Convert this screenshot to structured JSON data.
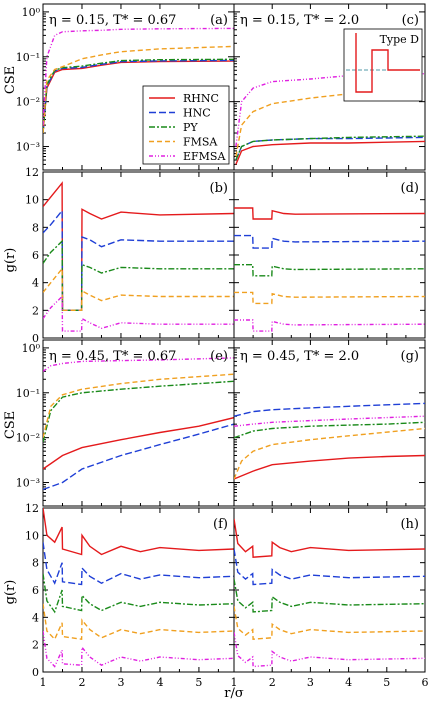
{
  "figure": {
    "xlabel": "r/σ",
    "ylabel_cse": "CSE",
    "ylabel_gr": "g(r)",
    "inset_label": "Type D",
    "legend": [
      "RHNC",
      "HNC",
      "PY",
      "FMSA",
      "EFMSA"
    ],
    "colors": {
      "RHNC": "#e41a1c",
      "HNC": "#1f3fd6",
      "PY": "#1a8a1a",
      "FMSA": "#f0a020",
      "EFMSA": "#e020e0"
    },
    "x_ticks_left": [
      "1",
      "2",
      "3",
      "4",
      "5"
    ],
    "x_ticks_right": [
      "1",
      "2",
      "3",
      "4",
      "5",
      "6"
    ],
    "cse_ticks": [
      "10⁰",
      "10⁻¹",
      "10⁻²",
      "10⁻³"
    ],
    "gr_ticks": [
      "0",
      "2",
      "4",
      "6",
      "8",
      "10",
      "12"
    ]
  },
  "chart_data": [
    {
      "panel": "(a)",
      "type": "line",
      "title": "η = 0.15, T* = 0.67",
      "ylabel": "CSE",
      "xlim": [
        1,
        5.9
      ],
      "ylim": [
        0.0003,
        1.5
      ],
      "yscale": "log",
      "series": [
        {
          "name": "RHNC",
          "x": [
            1,
            1.1,
            1.3,
            1.5,
            2.0,
            2.5,
            3.0,
            4.0,
            5.9
          ],
          "y": [
            0.002,
            0.02,
            0.045,
            0.052,
            0.055,
            0.065,
            0.075,
            0.078,
            0.08
          ]
        },
        {
          "name": "HNC",
          "x": [
            1,
            1.1,
            1.3,
            1.5,
            2.0,
            2.5,
            3.0,
            4.0,
            5.9
          ],
          "y": [
            0.002,
            0.022,
            0.048,
            0.055,
            0.058,
            0.068,
            0.078,
            0.081,
            0.083
          ]
        },
        {
          "name": "PY",
          "x": [
            1,
            1.1,
            1.3,
            1.5,
            2.0,
            2.5,
            3.0,
            4.0,
            5.9
          ],
          "y": [
            0.002,
            0.024,
            0.05,
            0.057,
            0.062,
            0.072,
            0.082,
            0.086,
            0.088
          ]
        },
        {
          "name": "FMSA",
          "x": [
            1,
            1.1,
            1.3,
            1.5,
            2.0,
            2.5,
            3.0,
            4.0,
            5.9
          ],
          "y": [
            0.002,
            0.03,
            0.052,
            0.06,
            0.09,
            0.11,
            0.13,
            0.15,
            0.17
          ]
        },
        {
          "name": "EFMSA",
          "x": [
            1,
            1.1,
            1.3,
            1.5,
            2.0,
            2.5,
            3.0,
            4.0,
            5.9
          ],
          "y": [
            0.003,
            0.1,
            0.3,
            0.36,
            0.38,
            0.39,
            0.41,
            0.42,
            0.43
          ]
        }
      ]
    },
    {
      "panel": "(c)",
      "type": "line",
      "title": "η = 0.15, T* = 2.0",
      "ylabel": "CSE",
      "xlim": [
        1,
        6
      ],
      "ylim": [
        0.0003,
        1.5
      ],
      "yscale": "log",
      "series": [
        {
          "name": "RHNC",
          "x": [
            1.05,
            1.2,
            1.5,
            2.0,
            3.0,
            4.0,
            6.0
          ],
          "y": [
            0.0004,
            0.0008,
            0.001,
            0.0011,
            0.0012,
            0.0012,
            0.0013
          ]
        },
        {
          "name": "HNC",
          "x": [
            1.05,
            1.2,
            1.5,
            2.0,
            3.0,
            4.0,
            6.0
          ],
          "y": [
            0.0005,
            0.001,
            0.0013,
            0.0014,
            0.0015,
            0.0015,
            0.0016
          ]
        },
        {
          "name": "PY",
          "x": [
            1.05,
            1.2,
            1.5,
            2.0,
            3.0,
            4.0,
            6.0
          ],
          "y": [
            0.0005,
            0.001,
            0.0013,
            0.0014,
            0.0015,
            0.0016,
            0.0017
          ]
        },
        {
          "name": "FMSA",
          "x": [
            1.05,
            1.2,
            1.5,
            2.0,
            3.0,
            4.0,
            6.0
          ],
          "y": [
            0.0006,
            0.003,
            0.006,
            0.009,
            0.012,
            0.015,
            0.017
          ]
        },
        {
          "name": "EFMSA",
          "x": [
            1.05,
            1.2,
            1.5,
            2.0,
            3.0,
            4.0,
            6.0
          ],
          "y": [
            0.001,
            0.01,
            0.02,
            0.028,
            0.032,
            0.038,
            0.042
          ]
        }
      ]
    },
    {
      "panel": "(b)",
      "type": "line",
      "ylabel": "g(r)",
      "xlim": [
        1,
        5.9
      ],
      "ylim": [
        0,
        12
      ],
      "series": [
        {
          "name": "RHNC",
          "x": [
            1,
            1.2,
            1.49,
            1.5,
            1.99,
            2.0,
            2.2,
            2.5,
            3.0,
            4.0,
            5.9
          ],
          "y": [
            9.5,
            10.2,
            11.2,
            2.0,
            2.0,
            9.3,
            9.0,
            8.6,
            9.1,
            8.9,
            9.0
          ]
        },
        {
          "name": "HNC",
          "x": [
            1,
            1.2,
            1.49,
            1.5,
            1.99,
            2.0,
            2.2,
            2.5,
            3.0,
            4.0,
            5.9
          ],
          "y": [
            7.6,
            8.2,
            9.2,
            2.0,
            2.0,
            7.3,
            7.1,
            6.6,
            7.1,
            7.0,
            7.0
          ]
        },
        {
          "name": "PY",
          "x": [
            1,
            1.2,
            1.49,
            1.5,
            1.99,
            2.0,
            2.2,
            2.5,
            3.0,
            4.0,
            5.9
          ],
          "y": [
            5.4,
            6.2,
            7.0,
            2.0,
            2.0,
            5.3,
            5.1,
            4.7,
            5.1,
            5.0,
            5.0
          ]
        },
        {
          "name": "FMSA",
          "x": [
            1,
            1.2,
            1.49,
            1.5,
            1.99,
            2.0,
            2.2,
            2.5,
            3.0,
            4.0,
            5.9
          ],
          "y": [
            3.3,
            4.0,
            5.0,
            2.0,
            2.0,
            3.4,
            3.1,
            2.7,
            3.1,
            3.0,
            3.0
          ]
        },
        {
          "name": "EFMSA",
          "x": [
            1,
            1.2,
            1.49,
            1.5,
            1.99,
            2.0,
            2.2,
            2.5,
            3.0,
            4.0,
            5.9
          ],
          "y": [
            1.4,
            2.2,
            3.0,
            0.5,
            0.5,
            1.4,
            1.1,
            0.7,
            1.1,
            1.0,
            1.0
          ]
        }
      ]
    },
    {
      "panel": "(d)",
      "type": "line",
      "ylabel": "g(r)",
      "xlim": [
        1,
        6
      ],
      "ylim": [
        0,
        12
      ],
      "series": [
        {
          "name": "RHNC",
          "x": [
            1,
            1.49,
            1.5,
            1.99,
            2.0,
            2.3,
            2.6,
            6.0
          ],
          "y": [
            9.4,
            9.4,
            8.6,
            8.6,
            9.2,
            9.0,
            8.95,
            9.0
          ]
        },
        {
          "name": "HNC",
          "x": [
            1,
            1.49,
            1.5,
            1.99,
            2.0,
            2.3,
            2.6,
            6.0
          ],
          "y": [
            7.4,
            7.4,
            6.5,
            6.5,
            7.2,
            7.0,
            6.95,
            7.0
          ]
        },
        {
          "name": "PY",
          "x": [
            1,
            1.49,
            1.5,
            1.99,
            2.0,
            2.3,
            2.6,
            6.0
          ],
          "y": [
            5.3,
            5.3,
            4.5,
            4.5,
            5.2,
            5.0,
            4.95,
            5.0
          ]
        },
        {
          "name": "FMSA",
          "x": [
            1,
            1.49,
            1.5,
            1.99,
            2.0,
            2.3,
            2.6,
            6.0
          ],
          "y": [
            3.3,
            3.3,
            2.5,
            2.5,
            3.2,
            3.0,
            2.95,
            3.0
          ]
        },
        {
          "name": "EFMSA",
          "x": [
            1,
            1.49,
            1.5,
            1.99,
            2.0,
            2.3,
            2.6,
            6.0
          ],
          "y": [
            1.3,
            1.3,
            0.5,
            0.5,
            1.2,
            1.0,
            0.95,
            1.0
          ]
        }
      ]
    },
    {
      "panel": "(e)",
      "type": "line",
      "title": "η = 0.45, T* = 0.67",
      "ylabel": "CSE",
      "xlim": [
        1,
        5.9
      ],
      "ylim": [
        0.0003,
        1.5
      ],
      "yscale": "log",
      "series": [
        {
          "name": "RHNC",
          "x": [
            1,
            1.5,
            2.0,
            3.0,
            4.0,
            5.0,
            5.9
          ],
          "y": [
            0.002,
            0.004,
            0.006,
            0.009,
            0.013,
            0.018,
            0.028
          ]
        },
        {
          "name": "HNC",
          "x": [
            1,
            1.5,
            2.0,
            3.0,
            4.0,
            5.0,
            5.9
          ],
          "y": [
            0.0007,
            0.001,
            0.002,
            0.004,
            0.007,
            0.012,
            0.02
          ]
        },
        {
          "name": "PY",
          "x": [
            1,
            1.2,
            1.5,
            2.0,
            3.0,
            4.0,
            5.9
          ],
          "y": [
            0.008,
            0.04,
            0.08,
            0.1,
            0.12,
            0.14,
            0.18
          ]
        },
        {
          "name": "FMSA",
          "x": [
            1,
            1.2,
            1.5,
            2.0,
            3.0,
            4.0,
            5.9
          ],
          "y": [
            0.01,
            0.05,
            0.09,
            0.12,
            0.16,
            0.2,
            0.26
          ]
        },
        {
          "name": "EFMSA",
          "x": [
            1,
            1.2,
            1.5,
            2.0,
            3.0,
            4.0,
            5.9
          ],
          "y": [
            0.3,
            0.4,
            0.45,
            0.5,
            0.52,
            0.54,
            0.6
          ]
        }
      ]
    },
    {
      "panel": "(g)",
      "type": "line",
      "title": "η = 0.45, T* = 2.0",
      "ylabel": "CSE",
      "xlim": [
        1,
        6
      ],
      "ylim": [
        0.0003,
        1.5
      ],
      "yscale": "log",
      "series": [
        {
          "name": "RHNC",
          "x": [
            1,
            1.5,
            2.0,
            3.0,
            4.0,
            5.0,
            6.0
          ],
          "y": [
            0.0012,
            0.0018,
            0.0025,
            0.003,
            0.0035,
            0.0038,
            0.004
          ]
        },
        {
          "name": "HNC",
          "x": [
            1,
            1.5,
            2.0,
            3.0,
            4.0,
            5.0,
            6.0
          ],
          "y": [
            0.03,
            0.038,
            0.042,
            0.046,
            0.05,
            0.054,
            0.058
          ]
        },
        {
          "name": "PY",
          "x": [
            1,
            1.5,
            2.0,
            3.0,
            4.0,
            5.0,
            6.0
          ],
          "y": [
            0.01,
            0.014,
            0.016,
            0.018,
            0.019,
            0.02,
            0.022
          ]
        },
        {
          "name": "FMSA",
          "x": [
            1,
            1.2,
            1.5,
            2.0,
            3.0,
            4.0,
            6.0
          ],
          "y": [
            0.0012,
            0.003,
            0.005,
            0.007,
            0.009,
            0.011,
            0.016
          ]
        },
        {
          "name": "EFMSA",
          "x": [
            1,
            1.5,
            2.0,
            3.0,
            4.0,
            5.0,
            6.0
          ],
          "y": [
            0.018,
            0.02,
            0.022,
            0.024,
            0.026,
            0.028,
            0.03
          ]
        }
      ]
    },
    {
      "panel": "(f)",
      "type": "line",
      "ylabel": "g(r)",
      "xlim": [
        1,
        5.9
      ],
      "ylim": [
        0,
        12
      ],
      "series": [
        {
          "name": "RHNC",
          "x": [
            1,
            1.1,
            1.3,
            1.49,
            1.5,
            1.99,
            2.0,
            2.2,
            2.5,
            3.0,
            3.5,
            4.0,
            5.0,
            5.9
          ],
          "y": [
            12.0,
            10.0,
            9.5,
            10.6,
            9.0,
            8.6,
            10.0,
            9.2,
            8.6,
            9.2,
            8.8,
            9.1,
            8.9,
            9.0
          ]
        },
        {
          "name": "HNC",
          "x": [
            1,
            1.1,
            1.3,
            1.49,
            1.5,
            1.99,
            2.0,
            2.2,
            2.5,
            3.0,
            3.5,
            4.0,
            5.0,
            5.9
          ],
          "y": [
            9.5,
            7.5,
            6.5,
            8.0,
            6.6,
            6.4,
            7.6,
            7.0,
            6.5,
            7.2,
            6.8,
            7.1,
            6.9,
            7.0
          ]
        },
        {
          "name": "PY",
          "x": [
            1,
            1.1,
            1.3,
            1.49,
            1.5,
            1.99,
            2.0,
            2.2,
            2.5,
            3.0,
            3.5,
            4.0,
            5.0,
            5.9
          ],
          "y": [
            7.2,
            5.2,
            4.4,
            6.0,
            4.8,
            4.5,
            5.6,
            5.0,
            4.5,
            5.1,
            4.8,
            5.1,
            4.9,
            5.0
          ]
        },
        {
          "name": "FMSA",
          "x": [
            1,
            1.1,
            1.3,
            1.49,
            1.5,
            1.99,
            2.0,
            2.2,
            2.5,
            3.0,
            3.5,
            4.0,
            5.0,
            5.9
          ],
          "y": [
            5.0,
            3.0,
            2.4,
            3.6,
            2.6,
            2.4,
            3.8,
            3.1,
            2.5,
            3.1,
            2.8,
            3.1,
            2.9,
            3.0
          ]
        },
        {
          "name": "EFMSA",
          "x": [
            1,
            1.1,
            1.3,
            1.49,
            1.5,
            1.99,
            2.0,
            2.2,
            2.5,
            3.0,
            3.5,
            4.0,
            5.0,
            5.9
          ],
          "y": [
            3.0,
            1.0,
            0.4,
            1.6,
            0.6,
            0.5,
            1.8,
            1.1,
            0.5,
            1.1,
            0.8,
            1.1,
            0.9,
            1.0
          ]
        }
      ]
    },
    {
      "panel": "(h)",
      "type": "line",
      "ylabel": "g(r)",
      "xlim": [
        1,
        6
      ],
      "ylim": [
        0,
        12
      ],
      "series": [
        {
          "name": "RHNC",
          "x": [
            1,
            1.1,
            1.3,
            1.49,
            1.5,
            1.99,
            2.0,
            2.2,
            2.5,
            3.0,
            4.0,
            6.0
          ],
          "y": [
            11.2,
            9.4,
            8.8,
            9.2,
            8.4,
            8.5,
            9.5,
            9.1,
            8.8,
            9.1,
            8.9,
            9.0
          ]
        },
        {
          "name": "HNC",
          "x": [
            1,
            1.1,
            1.3,
            1.49,
            1.5,
            1.99,
            2.0,
            2.2,
            2.5,
            3.0,
            4.0,
            6.0
          ],
          "y": [
            9.0,
            7.3,
            6.8,
            7.2,
            6.4,
            6.5,
            7.5,
            7.1,
            6.8,
            7.1,
            6.9,
            7.0
          ]
        },
        {
          "name": "PY",
          "x": [
            1,
            1.1,
            1.3,
            1.49,
            1.5,
            1.99,
            2.0,
            2.2,
            2.5,
            3.0,
            4.0,
            6.0
          ],
          "y": [
            6.8,
            5.2,
            4.7,
            5.1,
            4.4,
            4.5,
            5.5,
            5.1,
            4.8,
            5.1,
            4.9,
            5.0
          ]
        },
        {
          "name": "FMSA",
          "x": [
            1,
            1.1,
            1.3,
            1.49,
            1.5,
            1.99,
            2.0,
            2.2,
            2.5,
            3.0,
            4.0,
            6.0
          ],
          "y": [
            4.8,
            3.2,
            2.7,
            3.1,
            2.4,
            2.5,
            3.5,
            3.1,
            2.8,
            3.1,
            2.9,
            3.0
          ]
        },
        {
          "name": "EFMSA",
          "x": [
            1,
            1.1,
            1.3,
            1.49,
            1.5,
            1.99,
            2.0,
            2.2,
            2.5,
            3.0,
            4.0,
            6.0
          ],
          "y": [
            2.9,
            1.2,
            0.7,
            1.1,
            0.4,
            0.5,
            1.5,
            1.1,
            0.8,
            1.1,
            0.9,
            1.0
          ]
        }
      ]
    }
  ]
}
